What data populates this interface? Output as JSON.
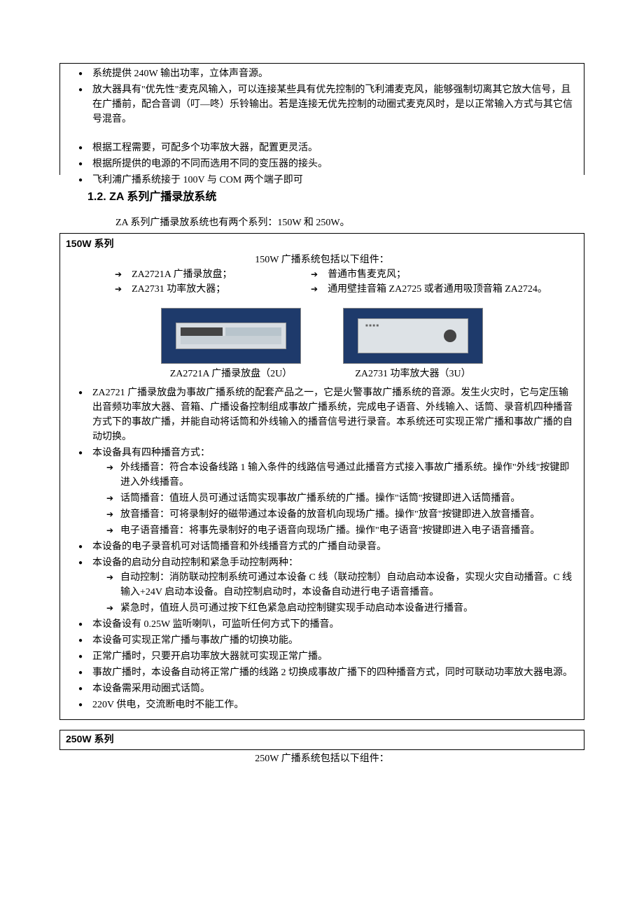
{
  "top_box": {
    "bullets": [
      "系统提供 240W 输出功率，立体声音源。",
      "放大器具有\"优先性\"麦克风输入，可以连接某些具有优先控制的飞利浦麦克风，能够强制切离其它放大信号，且在广播前，配合音调（叮—咚）乐铃输出。若是连接无优先控制的动圈式麦克风时，是以正常输入方式与其它信号混音。",
      "根据工程需要，可配多个功率放大器，配置更灵活。",
      "根据所提供的电源的不同而选用不同的变压器的接头。",
      "飞利浦广播系统接于 100V 与 COM 两个端子即可"
    ],
    "gap_after_index": 1
  },
  "section": {
    "number": "1.2.",
    "title": "ZA 系列广播录放系统",
    "intro": "ZA 系列广播录放系统也有两个系列：150W 和 250W。"
  },
  "series150": {
    "label": "150W 系列",
    "heading": "150W 广播系统包括以下组件：",
    "components": [
      {
        "left": "ZA2721A 广播录放盘；",
        "right": "普通市售麦克风；"
      },
      {
        "left": "ZA2731 功率放大器；",
        "right": "通用壁挂音箱 ZA2725 或者通用吸顶音箱 ZA2724。"
      }
    ],
    "images": [
      {
        "caption": "ZA2721A 广播录放盘（2U）"
      },
      {
        "caption": "ZA2731 功率放大器（3U）"
      }
    ],
    "details": [
      {
        "text": "ZA2721 广播录放盘为事故广播系统的配套产品之一，它是火警事故广播系统的音源。发生火灾时，它与定压输出音频功率放大器、音箱、广播设备控制组成事故广播系统，完成电子语音、外线输入、话筒、录音机四种播音方式下的事故广播，并能自动将话筒和外线输入的播音信号进行录音。本系统还可实现正常广播和事故广播的自动切换。"
      },
      {
        "text": "本设备具有四种播音方式：",
        "sub": [
          "外线播音：符合本设备线路 1 输入条件的线路信号通过此播音方式接入事故广播系统。操作\"外线\"按键即进入外线播音。",
          "话筒播音：值班人员可通过话筒实现事故广播系统的广播。操作\"话筒\"按键即进入话筒播音。",
          "放音播音：可将录制好的磁带通过本设备的放音机向现场广播。操作\"放音\"按键即进入放音播音。",
          "电子语音播音：将事先录制好的电子语音向现场广播。操作\"电子语音\"按键即进入电子语音播音。"
        ]
      },
      {
        "text": "本设备的电子录音机可对话筒播音和外线播音方式的广播自动录音。"
      },
      {
        "text": "本设备的启动分自动控制和紧急手动控制两种：",
        "sub": [
          "自动控制：消防联动控制系统可通过本设备 C 线（联动控制）自动启动本设备，实现火灾自动播音。C 线输入+24V 启动本设备。自动控制启动时，本设备自动进行电子语音播音。",
          "紧急时，值班人员可通过按下红色紧急启动控制键实现手动启动本设备进行播音。"
        ]
      },
      {
        "text": "本设备设有 0.25W 监听喇叭，可监听任何方式下的播音。"
      },
      {
        "text": "本设备可实现正常广播与事故广播的切换功能。"
      },
      {
        "text": "正常广播时，只要开启功率放大器就可实现正常广播。"
      },
      {
        "text": "事故广播时，本设备自动将正常广播的线路 2 切换成事故广播下的四种播音方式，同时可联动功率放大器电源。"
      },
      {
        "text": "本设备需采用动圈式话筒。"
      },
      {
        "text": "220V 供电，交流断电时不能工作。"
      }
    ]
  },
  "series250": {
    "label": "250W 系列",
    "heading": "250W 广播系统包括以下组件："
  }
}
